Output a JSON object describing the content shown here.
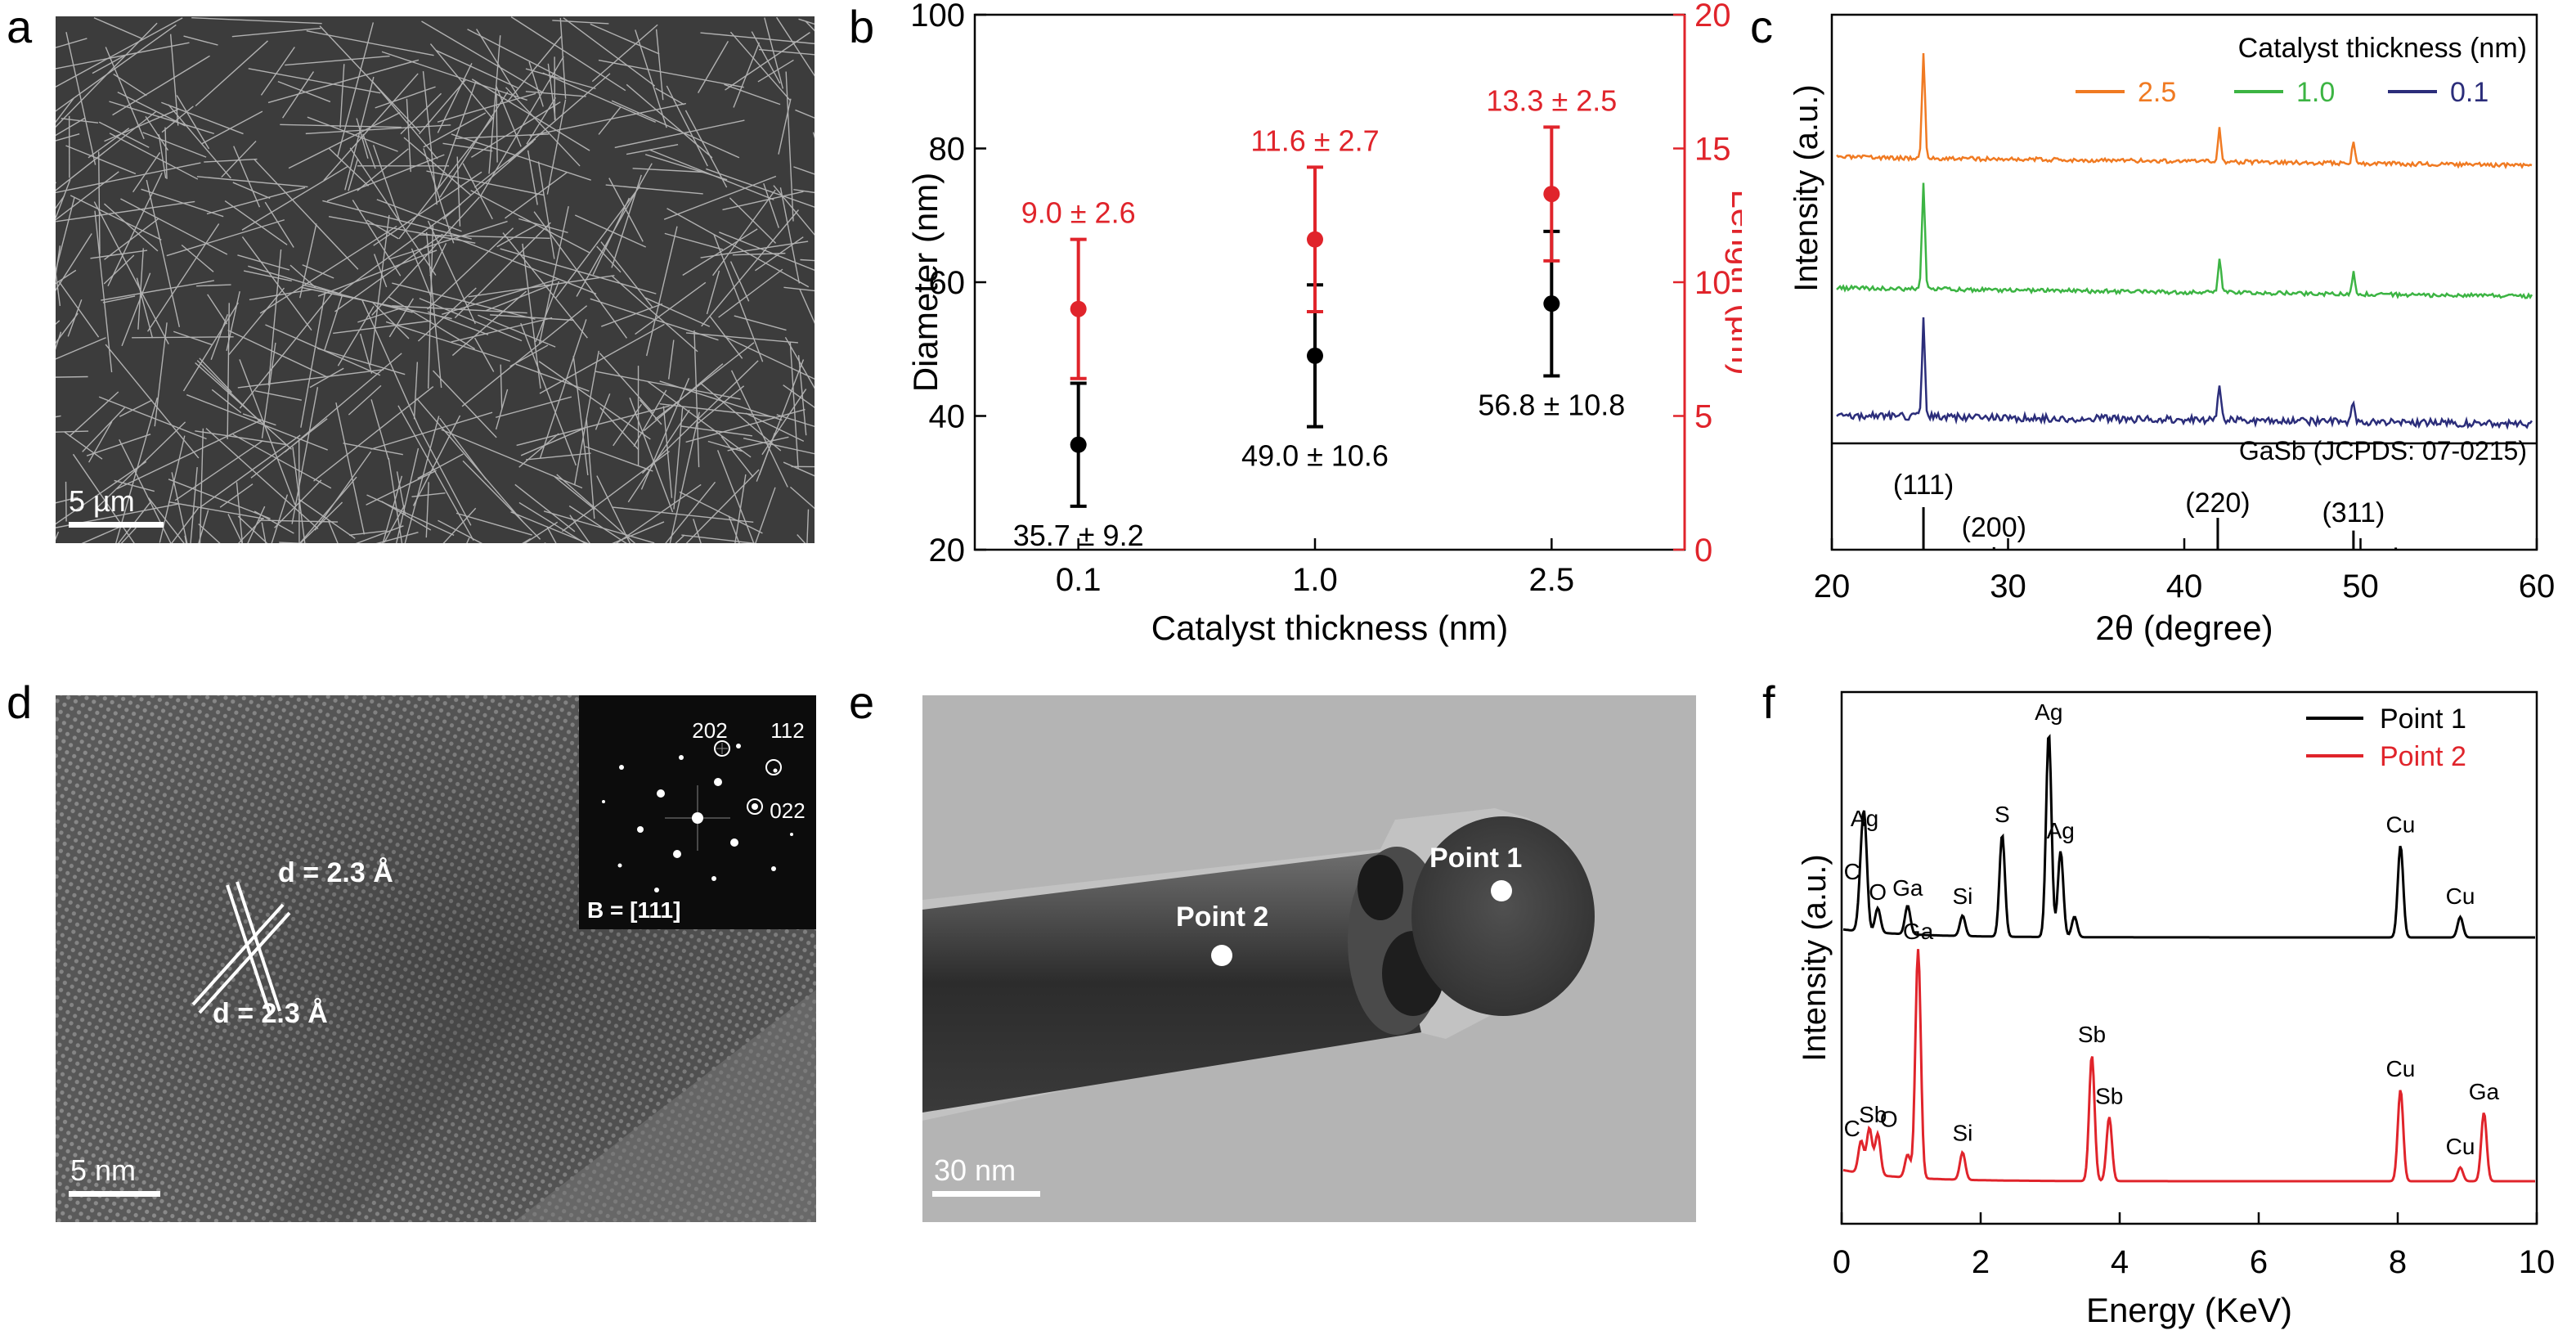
{
  "panels": {
    "a": {
      "label": "a",
      "scale": "5 µm"
    },
    "b": {
      "label": "b"
    },
    "c": {
      "label": "c"
    },
    "d": {
      "label": "d",
      "scale": "5 nm",
      "d1": "d = 2.3 Å",
      "d2": "d = 2.3 Å",
      "fft_spots": [
        "202",
        "112",
        "022"
      ],
      "zone": "B = [111]"
    },
    "e": {
      "label": "e",
      "scale": "30 nm",
      "point1": "Point 1",
      "point2": "Point 2"
    },
    "f": {
      "label": "f"
    }
  },
  "chart_data": [
    {
      "id": "b",
      "type": "scatter",
      "xlabel": "Catalyst thickness (nm)",
      "ylabel": "Diameter (nm)",
      "ylabel_right": "Length (µm)",
      "categories": [
        "0.1",
        "1.0",
        "2.5"
      ],
      "ylim": [
        20,
        100
      ],
      "yticks": [
        "20",
        "40",
        "60",
        "80",
        "100"
      ],
      "ylim_right": [
        0,
        20
      ],
      "yticks_right": [
        "0",
        "5",
        "10",
        "15",
        "20"
      ],
      "colors": {
        "diameter": "#000000",
        "length": "#e0242b"
      },
      "series": [
        {
          "axis": "left",
          "values": [
            35.7,
            49.0,
            56.8
          ],
          "errors": [
            9.2,
            10.6,
            10.8
          ],
          "labels": [
            "35.7 ± 9.2",
            "49.0 ± 10.6",
            "56.8 ± 10.8"
          ]
        },
        {
          "axis": "right",
          "values": [
            9.0,
            11.6,
            13.3
          ],
          "errors": [
            2.6,
            2.7,
            2.5
          ],
          "labels": [
            "9.0 ± 2.6",
            "11.6 ± 2.7",
            "13.3 ± 2.5"
          ]
        }
      ]
    },
    {
      "id": "c",
      "type": "line",
      "xlabel": "2θ (degree)",
      "ylabel": "Intensity (a.u.)",
      "xlim": [
        20,
        60
      ],
      "xticks": [
        "20",
        "30",
        "40",
        "50",
        "60"
      ],
      "legend_title": "Catalyst thickness (nm)",
      "series": [
        {
          "name": "2.5",
          "color": "#f07a22",
          "peaks": [
            25.2,
            42.0,
            49.6
          ],
          "heights": [
            1.0,
            0.32,
            0.2
          ]
        },
        {
          "name": "1.0",
          "color": "#3cb443",
          "peaks": [
            25.2,
            42.0,
            49.6
          ],
          "heights": [
            1.0,
            0.32,
            0.2
          ]
        },
        {
          "name": "0.1",
          "color": "#2b2d7a",
          "peaks": [
            25.2,
            42.0,
            49.6
          ],
          "heights": [
            0.9,
            0.36,
            0.2
          ]
        }
      ],
      "reference": {
        "label": "GaSb (JCPDS: 07-0215)",
        "lines": [
          {
            "x": 25.2,
            "label": "(111)",
            "h": 1.0
          },
          {
            "x": 29.2,
            "label": "(200)",
            "h": 0.06
          },
          {
            "x": 41.9,
            "label": "(220)",
            "h": 0.75
          },
          {
            "x": 49.6,
            "label": "(311)",
            "h": 0.45
          },
          {
            "x": 52.0,
            "label": "",
            "h": 0.05
          }
        ]
      }
    },
    {
      "id": "f",
      "type": "line",
      "xlabel": "Energy (KeV)",
      "ylabel": "Intensity (a.u.)",
      "xlim": [
        0,
        10
      ],
      "xticks": [
        "0",
        "2",
        "4",
        "6",
        "8",
        "10"
      ],
      "series": [
        {
          "name": "Point 1",
          "color": "#000000",
          "peaks": [
            [
              0.28,
              0.22
            ],
            [
              0.33,
              0.48
            ],
            [
              0.52,
              0.12
            ],
            [
              0.95,
              0.14
            ],
            [
              1.74,
              0.1
            ],
            [
              2.31,
              0.5
            ],
            [
              2.98,
              1.0
            ],
            [
              3.15,
              0.42
            ],
            [
              3.35,
              0.1
            ],
            [
              8.04,
              0.45
            ],
            [
              8.9,
              0.1
            ]
          ],
          "labels": [
            [
              "C",
              0.15
            ],
            [
              "Ag",
              0.33
            ],
            [
              "O",
              0.52
            ],
            [
              "Ga",
              0.95
            ],
            [
              "Si",
              1.74
            ],
            [
              "S",
              2.31
            ],
            [
              "Ag",
              2.98
            ],
            [
              "Ag",
              3.15
            ],
            [
              "Cu",
              8.04
            ],
            [
              "Cu",
              8.9
            ]
          ]
        },
        {
          "name": "Point 2",
          "color": "#e0242b",
          "peaks": [
            [
              0.28,
              0.14
            ],
            [
              0.4,
              0.2
            ],
            [
              0.52,
              0.18
            ],
            [
              0.95,
              0.1
            ],
            [
              1.1,
              1.0
            ],
            [
              1.74,
              0.12
            ],
            [
              3.6,
              0.55
            ],
            [
              3.85,
              0.28
            ],
            [
              8.04,
              0.4
            ],
            [
              8.9,
              0.06
            ],
            [
              9.24,
              0.3
            ]
          ],
          "labels": [
            [
              "C",
              0.15
            ],
            [
              "Sb",
              0.45
            ],
            [
              "O",
              0.68
            ],
            [
              "Ga",
              1.1
            ],
            [
              "Si",
              1.74
            ],
            [
              "Sb",
              3.6
            ],
            [
              "Sb",
              3.85
            ],
            [
              "Cu",
              8.04
            ],
            [
              "Cu",
              8.9
            ],
            [
              "Ga",
              9.24
            ]
          ]
        }
      ]
    }
  ]
}
